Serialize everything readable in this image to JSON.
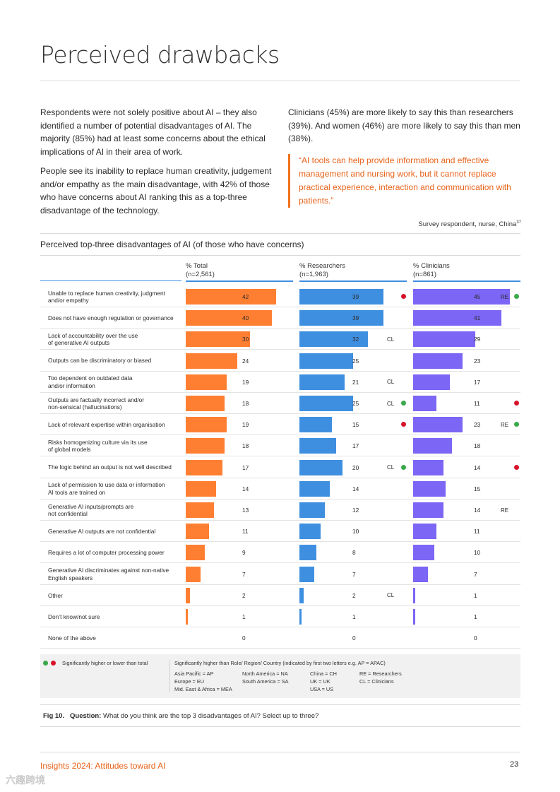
{
  "title": "Perceived drawbacks",
  "intro": {
    "left": [
      "Respondents were not solely positive about AI – they also identified a number of potential disadvantages of AI. The majority (85%) had at least some concerns about the ethical implications of AI in their area of work.",
      "People see its inability to replace human creativity, judgement and/or empathy as the main disadvantage, with 42% of those who have concerns about AI ranking this as a top-three disadvantage of the technology."
    ],
    "right": "Clinicians (45%) are more likely to say this than researchers (39%). And women (46%) are more likely to say this than men (38%).",
    "quote": "“AI tools can help provide information and effective management and nursing work, but it cannot replace practical experience, interaction and communication with patients.”",
    "attribution": "Survey respondent, nurse, China",
    "attribution_ref": "37"
  },
  "chart_title": "Perceived top-three disadvantages of AI (of those who have concerns)",
  "colors": {
    "total": "#ff7f32",
    "researchers": "#3f8fe0",
    "clinicians": "#7b66f5",
    "higher": "#3aa84a",
    "lower": "#d7132a",
    "accent": "#e8631a"
  },
  "chart_data": {
    "type": "bar",
    "columns": [
      {
        "key": "total",
        "name": "% Total",
        "n": "(n=2,561)"
      },
      {
        "key": "researchers",
        "name": "% Researchers",
        "n": "(n=1,963)"
      },
      {
        "key": "clinicians",
        "name": "% Clinicians",
        "n": "(n=861)"
      }
    ],
    "xlim": [
      0,
      50
    ],
    "categories": [
      "Unable to replace human creativity, judgment\nand/or empathy",
      "Does not have enough regulation or governance",
      "Lack of accountability over the use\nof generative AI outputs",
      "Outputs can be discriminatory or biased",
      "Too dependent on outdated data\nand/or information",
      "Outputs are factually incorrect and/or\nnon-sensical (hallucinations)",
      "Lack of relevant expertise within organisation",
      "Risks homogenizing culture via its use\nof global models",
      "The logic behind an output is not well described",
      "Lack of permission to use data or information\nAI tools are trained on",
      "Generative AI inputs/prompts are\nnot confidential",
      "Generative AI outputs are not confidential",
      "Requires a lot of computer processing power",
      "Generative AI discriminates against non-native\nEnglish speakers",
      "Other",
      "Don’t know/not sure",
      "None of the above"
    ],
    "series": [
      {
        "name": "% Total",
        "values": [
          42,
          40,
          30,
          24,
          19,
          18,
          19,
          18,
          17,
          14,
          13,
          11,
          9,
          7,
          2,
          1,
          0
        ]
      },
      {
        "name": "% Researchers",
        "values": [
          39,
          39,
          32,
          25,
          21,
          25,
          15,
          17,
          20,
          14,
          12,
          10,
          8,
          7,
          2,
          1,
          0
        ]
      },
      {
        "name": "% Clinicians",
        "values": [
          45,
          41,
          29,
          23,
          17,
          11,
          23,
          18,
          14,
          15,
          14,
          11,
          10,
          7,
          1,
          1,
          0
        ]
      }
    ],
    "researcher_tags": [
      "",
      "",
      "CL",
      "",
      "CL",
      "CL",
      "",
      "",
      "CL",
      "",
      "",
      "",
      "",
      "",
      "CL",
      "",
      ""
    ],
    "researcher_dots": [
      "lower",
      "",
      "",
      "",
      "",
      "higher",
      "lower",
      "",
      "higher",
      "",
      "",
      "",
      "",
      "",
      "",
      "",
      ""
    ],
    "clinician_tags": [
      "RE",
      "",
      "",
      "",
      "",
      "",
      "RE",
      "",
      "",
      "",
      "RE",
      "",
      "",
      "",
      "",
      "",
      ""
    ],
    "clinician_dots": [
      "higher",
      "",
      "",
      "",
      "",
      "lower",
      "higher",
      "",
      "lower",
      "",
      "",
      "",
      "",
      "",
      "",
      "",
      ""
    ]
  },
  "legend": {
    "dots_label": "Significantly higher or lower than total",
    "heading": "Significantly higher than Role/ Region/ Country (indicated by first two letters e.g. AP = APAC)",
    "col1": [
      "Asia Pacific = AP",
      "Europe = EU",
      "Mid. East & Africa = MEA"
    ],
    "col2": [
      "North America  = NA",
      "South America = SA"
    ],
    "col3": [
      "China = CH",
      "UK = UK",
      "USA = US"
    ],
    "col4": [
      "RE = Researchers",
      "CL = Clinicians"
    ]
  },
  "caption": {
    "fig": "Fig 10.",
    "question_label": "Question:",
    "question": "What do you think are the top 3 disadvantages of AI? Select up to three?"
  },
  "footer": {
    "left": "Insights 2024: Attitudes toward AI",
    "page": "23"
  },
  "watermark": "六趣跨境"
}
